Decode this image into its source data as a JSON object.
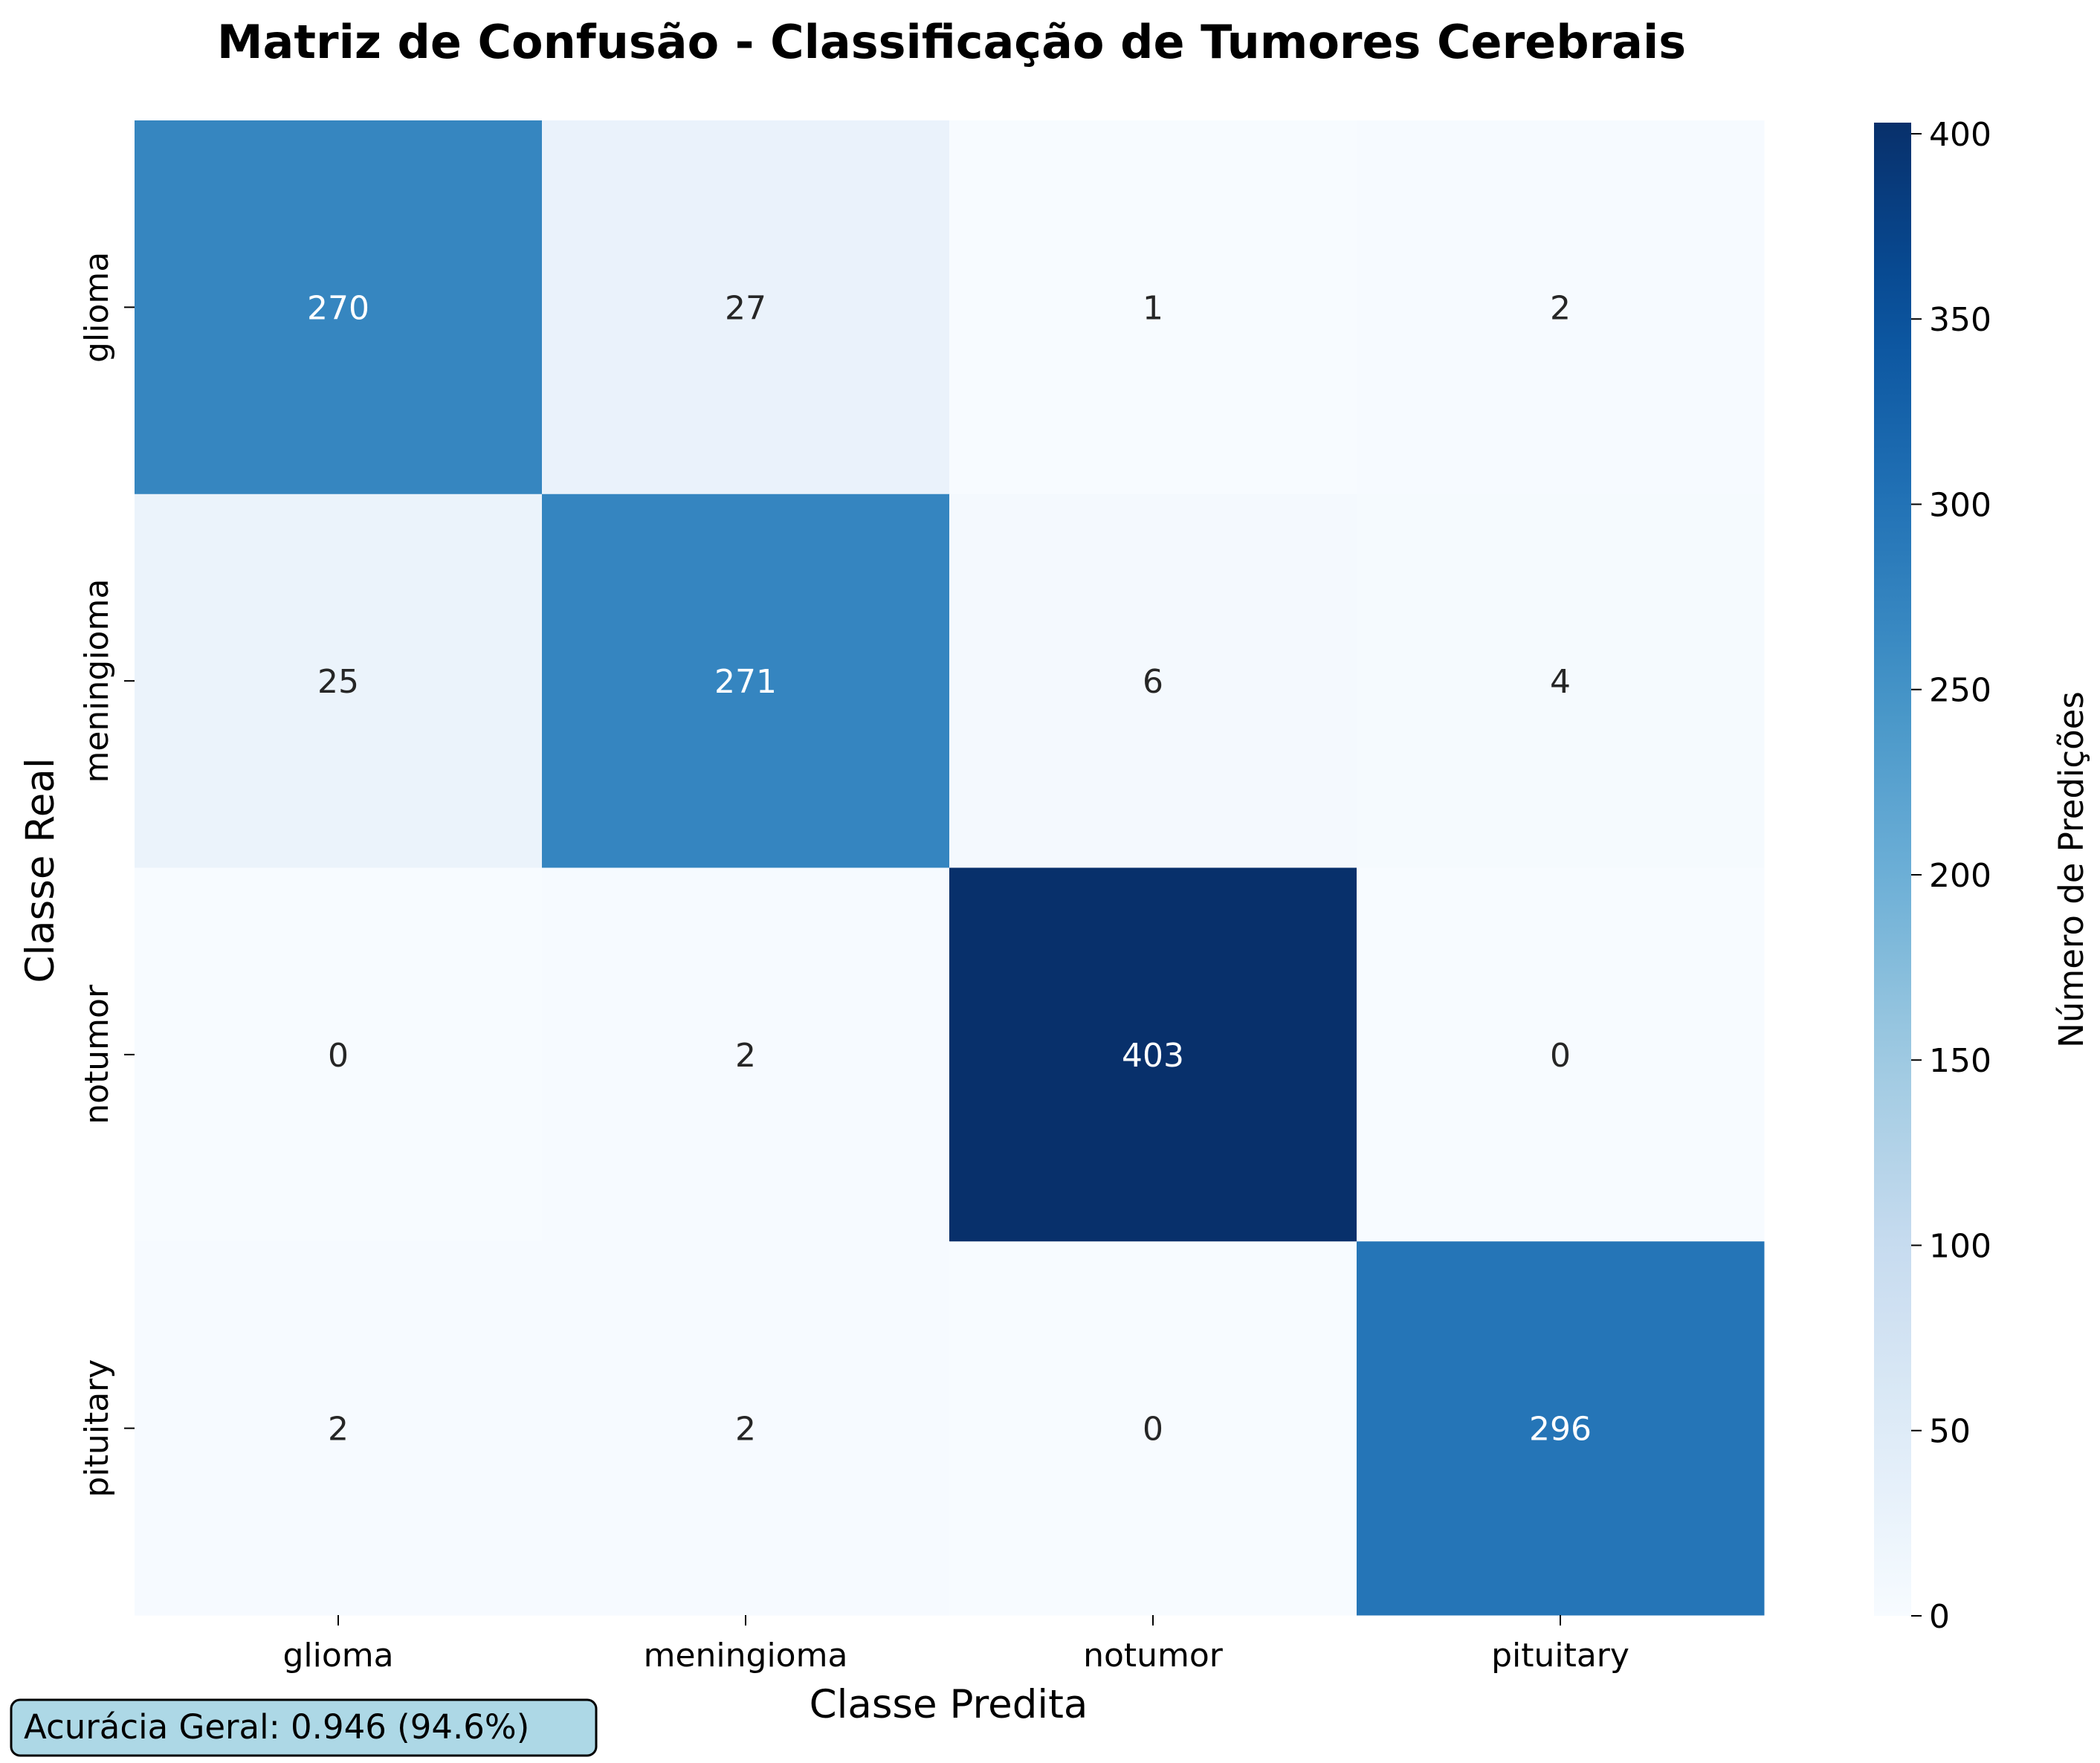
{
  "chart_data": {
    "type": "heatmap",
    "title": "Matriz de Confusão - Classificação de Tumores Cerebrais",
    "xlabel": "Classe Predita",
    "ylabel": "Classe Real",
    "x_categories": [
      "glioma",
      "meningioma",
      "notumor",
      "pituitary"
    ],
    "y_categories": [
      "glioma",
      "meningioma",
      "notumor",
      "pituitary"
    ],
    "matrix": [
      [
        270,
        27,
        1,
        2
      ],
      [
        25,
        271,
        6,
        4
      ],
      [
        0,
        2,
        403,
        0
      ],
      [
        2,
        2,
        0,
        296
      ]
    ],
    "colormap": "Blues",
    "colorbar": {
      "label": "Número de Predições",
      "range": [
        0,
        403
      ],
      "ticks": [
        0,
        50,
        100,
        150,
        200,
        250,
        300,
        350,
        400
      ]
    },
    "annotation": "Acurácia Geral: 0.946 (94.6%)",
    "colors": {
      "text_light": "#ffffff",
      "text_dark": "#262626",
      "badge_fill": "#add8e6",
      "badge_stroke": "#000000"
    }
  }
}
